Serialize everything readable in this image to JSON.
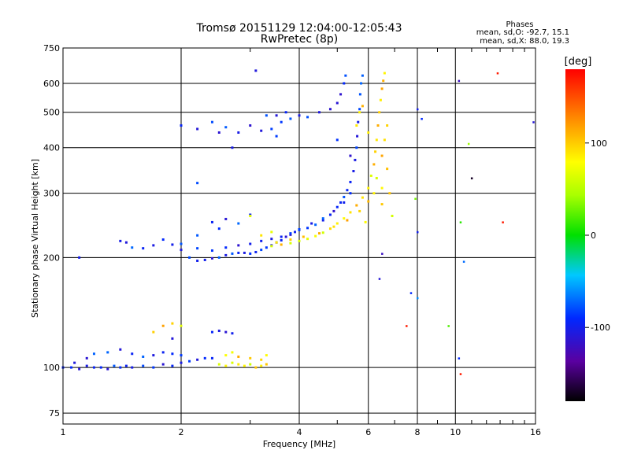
{
  "chart_data": {
    "type": "scatter",
    "title": "Tromsø 20151129 12:04:00-12:05:43",
    "subtitle": "RwPretec (8p)",
    "stats": {
      "heading": "Phases",
      "line_o": "mean, sd,O: -92.7, 15.1",
      "line_x": "mean, sd,X:  88.0, 19.3"
    },
    "xlabel": "Frequency [MHz]",
    "ylabel": "Stationary phase Virtual Height [km]",
    "xscale": "log",
    "yscale": "log",
    "xlim": [
      1,
      16
    ],
    "ylim": [
      70,
      750
    ],
    "x_ticks": [
      1,
      2,
      4,
      6,
      8,
      10,
      16
    ],
    "y_ticks": [
      75,
      100,
      200,
      300,
      400,
      500,
      600,
      750
    ],
    "grid": true,
    "colorbar": {
      "label": "[deg]",
      "range": [
        -180,
        180
      ],
      "ticks": [
        100,
        0,
        -100
      ]
    },
    "series": [
      {
        "name": "O",
        "mean_phase": -92.7,
        "points": [
          [
            1.0,
            100
          ],
          [
            1.05,
            100
          ],
          [
            1.1,
            99
          ],
          [
            1.15,
            101
          ],
          [
            1.2,
            100
          ],
          [
            1.25,
            100
          ],
          [
            1.3,
            99
          ],
          [
            1.35,
            101
          ],
          [
            1.4,
            100
          ],
          [
            1.45,
            101
          ],
          [
            1.5,
            100
          ],
          [
            1.6,
            101
          ],
          [
            1.7,
            100
          ],
          [
            1.8,
            102
          ],
          [
            1.9,
            101
          ],
          [
            2.0,
            103
          ],
          [
            2.1,
            104
          ],
          [
            2.2,
            105
          ],
          [
            2.3,
            106
          ],
          [
            2.4,
            106
          ],
          [
            1.07,
            103
          ],
          [
            1.15,
            106
          ],
          [
            1.2,
            109
          ],
          [
            1.3,
            110
          ],
          [
            1.4,
            112
          ],
          [
            1.5,
            109
          ],
          [
            1.6,
            107
          ],
          [
            1.7,
            108
          ],
          [
            1.8,
            110
          ],
          [
            1.9,
            109
          ],
          [
            2.0,
            108
          ],
          [
            1.4,
            222
          ],
          [
            1.45,
            220
          ],
          [
            1.5,
            213
          ],
          [
            1.6,
            212
          ],
          [
            1.7,
            216
          ],
          [
            1.8,
            224
          ],
          [
            1.9,
            217
          ],
          [
            2.0,
            210
          ],
          [
            2.1,
            200
          ],
          [
            2.2,
            196
          ],
          [
            2.3,
            197
          ],
          [
            2.4,
            199
          ],
          [
            2.5,
            200
          ],
          [
            2.6,
            203
          ],
          [
            2.7,
            205
          ],
          [
            2.8,
            206
          ],
          [
            2.9,
            206
          ],
          [
            3.0,
            205
          ],
          [
            3.1,
            207
          ],
          [
            3.2,
            210
          ],
          [
            3.3,
            213
          ],
          [
            3.4,
            216
          ],
          [
            3.5,
            220
          ],
          [
            3.6,
            223
          ],
          [
            3.7,
            228
          ],
          [
            3.8,
            231
          ],
          [
            3.9,
            235
          ],
          [
            4.0,
            238
          ],
          [
            4.2,
            241
          ],
          [
            4.4,
            246
          ],
          [
            4.6,
            253
          ],
          [
            4.8,
            262
          ],
          [
            5.0,
            275
          ],
          [
            5.1,
            283
          ],
          [
            5.2,
            293
          ],
          [
            5.3,
            306
          ],
          [
            5.4,
            322
          ],
          [
            5.5,
            345
          ],
          [
            5.55,
            370
          ],
          [
            5.6,
            400
          ],
          [
            5.62,
            430
          ],
          [
            5.65,
            470
          ],
          [
            5.7,
            510
          ],
          [
            5.72,
            560
          ],
          [
            5.75,
            600
          ],
          [
            5.8,
            630
          ],
          [
            2.0,
            218
          ],
          [
            2.2,
            212
          ],
          [
            2.4,
            209
          ],
          [
            2.6,
            213
          ],
          [
            2.8,
            216
          ],
          [
            3.0,
            218
          ],
          [
            3.2,
            222
          ],
          [
            3.4,
            225
          ],
          [
            3.6,
            228
          ],
          [
            3.8,
            233
          ],
          [
            4.0,
            239
          ],
          [
            4.3,
            248
          ],
          [
            4.6,
            256
          ],
          [
            4.9,
            268
          ],
          [
            5.2,
            283
          ],
          [
            5.4,
            300
          ],
          [
            2.4,
            250
          ],
          [
            2.6,
            255
          ],
          [
            2.8,
            248
          ],
          [
            3.0,
            262
          ],
          [
            2.2,
            230
          ],
          [
            2.5,
            240
          ],
          [
            2.0,
            460
          ],
          [
            2.2,
            450
          ],
          [
            2.4,
            470
          ],
          [
            2.6,
            455
          ],
          [
            2.8,
            440
          ],
          [
            3.0,
            460
          ],
          [
            3.2,
            445
          ],
          [
            3.4,
            450
          ],
          [
            3.5,
            430
          ],
          [
            3.6,
            470
          ],
          [
            3.8,
            480
          ],
          [
            4.0,
            490
          ],
          [
            4.2,
            485
          ],
          [
            4.5,
            500
          ],
          [
            4.8,
            510
          ],
          [
            5.0,
            530
          ],
          [
            5.1,
            560
          ],
          [
            5.2,
            600
          ],
          [
            5.25,
            630
          ],
          [
            3.3,
            490
          ],
          [
            3.5,
            490
          ],
          [
            3.7,
            500
          ],
          [
            2.5,
            440
          ],
          [
            2.7,
            400
          ],
          [
            2.4,
            125
          ],
          [
            2.6,
            125
          ],
          [
            2.7,
            124
          ],
          [
            2.5,
            126
          ],
          [
            1.1,
            200
          ],
          [
            2.2,
            320
          ],
          [
            1.9,
            120
          ],
          [
            3.1,
            650
          ],
          [
            5.4,
            380
          ],
          [
            5.0,
            420
          ]
        ]
      },
      {
        "name": "X",
        "mean_phase": 88.0,
        "points": [
          [
            2.5,
            102
          ],
          [
            2.6,
            101
          ],
          [
            2.7,
            103
          ],
          [
            2.8,
            102
          ],
          [
            2.9,
            101
          ],
          [
            3.0,
            102
          ],
          [
            3.1,
            100
          ],
          [
            3.2,
            101
          ],
          [
            3.3,
            102
          ],
          [
            2.6,
            108
          ],
          [
            2.8,
            107
          ],
          [
            3.0,
            106
          ],
          [
            3.2,
            105
          ],
          [
            2.7,
            110
          ],
          [
            3.3,
            108
          ],
          [
            3.4,
            215
          ],
          [
            3.6,
            217
          ],
          [
            3.8,
            219
          ],
          [
            4.0,
            222
          ],
          [
            4.2,
            225
          ],
          [
            4.4,
            229
          ],
          [
            4.6,
            234
          ],
          [
            4.8,
            240
          ],
          [
            5.0,
            248
          ],
          [
            5.2,
            256
          ],
          [
            5.4,
            266
          ],
          [
            5.6,
            278
          ],
          [
            5.8,
            292
          ],
          [
            6.0,
            310
          ],
          [
            6.1,
            335
          ],
          [
            6.2,
            360
          ],
          [
            6.25,
            390
          ],
          [
            6.3,
            420
          ],
          [
            6.35,
            460
          ],
          [
            6.4,
            500
          ],
          [
            6.45,
            540
          ],
          [
            6.5,
            580
          ],
          [
            6.55,
            610
          ],
          [
            6.6,
            640
          ],
          [
            3.5,
            220
          ],
          [
            3.8,
            224
          ],
          [
            4.1,
            228
          ],
          [
            4.5,
            233
          ],
          [
            4.9,
            243
          ],
          [
            5.3,
            253
          ],
          [
            5.7,
            268
          ],
          [
            6.0,
            285
          ],
          [
            6.2,
            300
          ],
          [
            6.3,
            330
          ],
          [
            6.5,
            380
          ],
          [
            6.6,
            420
          ],
          [
            6.7,
            460
          ],
          [
            6.5,
            310
          ],
          [
            6.8,
            300
          ],
          [
            6.7,
            350
          ],
          [
            5.6,
            460
          ],
          [
            5.7,
            500
          ],
          [
            5.8,
            520
          ],
          [
            6.5,
            280
          ],
          [
            6.9,
            260
          ],
          [
            5.9,
            250
          ],
          [
            6.0,
            440
          ],
          [
            1.8,
            130
          ],
          [
            1.9,
            132
          ],
          [
            2.0,
            130
          ],
          [
            1.7,
            125
          ],
          [
            3.0,
            260
          ],
          [
            3.4,
            235
          ],
          [
            3.2,
            230
          ]
        ]
      }
    ],
    "outliers": [
      [
        8.0,
        510,
        -100
      ],
      [
        8.2,
        480,
        -90
      ],
      [
        7.9,
        290,
        30
      ],
      [
        10.2,
        610,
        -120
      ],
      [
        10.8,
        410,
        40
      ],
      [
        11.0,
        330,
        -170
      ],
      [
        10.3,
        250,
        10
      ],
      [
        10.5,
        195,
        -70
      ],
      [
        7.7,
        160,
        -90
      ],
      [
        8.0,
        155,
        -60
      ],
      [
        9.6,
        130,
        20
      ],
      [
        10.2,
        106,
        -90
      ],
      [
        10.3,
        96,
        170
      ],
      [
        8.0,
        235,
        -100
      ],
      [
        13.2,
        250,
        170
      ],
      [
        12.8,
        640,
        170
      ],
      [
        15.8,
        470,
        -110
      ],
      [
        7.5,
        130,
        170
      ],
      [
        6.5,
        205,
        -120
      ],
      [
        6.4,
        175,
        -110
      ]
    ]
  }
}
